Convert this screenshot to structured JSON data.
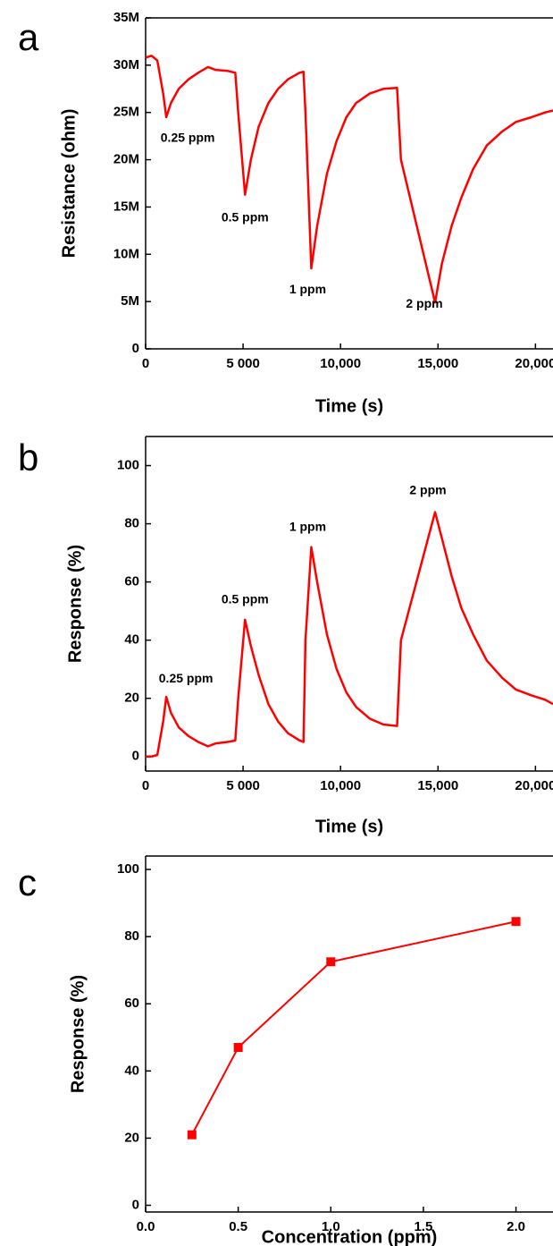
{
  "chart_data": [
    {
      "type": "line",
      "label": "a",
      "xlabel": "Time (s)",
      "ylabel": "Resistance (ohm)",
      "color": "#ff0000",
      "x": [
        0,
        300,
        600,
        900,
        1060,
        1300,
        1700,
        2200,
        2700,
        3200,
        3600,
        4200,
        4600,
        4750,
        5100,
        5400,
        5800,
        6300,
        6800,
        7300,
        7900,
        8100,
        8200,
        8500,
        8800,
        9300,
        9800,
        10300,
        10800,
        11500,
        12200,
        12900,
        13100,
        14850,
        15200,
        15700,
        16200,
        16800,
        17500,
        18300,
        19000,
        19800,
        20500,
        20900
      ],
      "values": [
        30800000,
        31000000,
        30500000,
        27000000,
        24500000,
        26000000,
        27500000,
        28500000,
        29200000,
        29800000,
        29500000,
        29400000,
        29200000,
        25000000,
        16300000,
        20000000,
        23500000,
        26000000,
        27500000,
        28500000,
        29200000,
        29300000,
        25000000,
        8500000,
        13000000,
        18500000,
        22000000,
        24500000,
        26000000,
        27000000,
        27500000,
        27600000,
        20000000,
        4900000,
        9000000,
        13000000,
        16000000,
        19000000,
        21500000,
        23000000,
        24000000,
        24500000,
        25000000,
        25200000
      ],
      "annotations": [
        "0.25 ppm",
        "0.5 ppm",
        "1 ppm",
        "2 ppm"
      ],
      "xlim": [
        0,
        20900
      ],
      "xticks": [
        0,
        {
          "value": 5000,
          "label": "5 000"
        },
        {
          "value": 10000,
          "label": "10,000"
        },
        {
          "value": 15000,
          "label": "15,000"
        },
        {
          "value": 20000,
          "label": "20,000"
        }
      ],
      "ylim": [
        0,
        35000000
      ],
      "yticks": [
        0,
        {
          "value": 5000000,
          "label": "5M"
        },
        {
          "value": 10000000,
          "label": "10M"
        },
        {
          "value": 15000000,
          "label": "15M"
        },
        {
          "value": 20000000,
          "label": "20M"
        },
        {
          "value": 25000000,
          "label": "25M"
        },
        {
          "value": 30000000,
          "label": "30M"
        },
        {
          "value": 35000000,
          "label": "35M"
        }
      ]
    },
    {
      "type": "line",
      "label": "b",
      "xlabel": "Time (s)",
      "ylabel": "Response (%)",
      "color": "#ff0000",
      "x": [
        0,
        300,
        600,
        900,
        1060,
        1300,
        1700,
        2200,
        2700,
        3200,
        3600,
        4200,
        4600,
        4750,
        5100,
        5400,
        5800,
        6300,
        6800,
        7300,
        7900,
        8100,
        8200,
        8500,
        8800,
        9300,
        9800,
        10300,
        10800,
        11500,
        12200,
        12900,
        13100,
        14850,
        15200,
        15700,
        16200,
        16800,
        17500,
        18300,
        19000,
        19800,
        20500,
        20900
      ],
      "values": [
        0,
        0,
        0.5,
        12,
        20.5,
        15,
        10,
        7,
        5,
        3.5,
        4.5,
        5,
        5.5,
        20,
        47,
        38,
        28,
        18,
        12,
        8,
        5.5,
        5,
        40,
        72,
        60,
        42,
        30,
        22,
        17,
        13,
        11,
        10.5,
        40,
        84,
        75,
        62,
        51,
        42,
        33,
        27,
        23,
        21,
        19.5,
        18
      ],
      "annotations": [
        "0.25 ppm",
        "0.5 ppm",
        "1 ppm",
        "2 ppm"
      ],
      "xlim": [
        0,
        20900
      ],
      "xticks": [
        0,
        {
          "value": 5000,
          "label": "5 000"
        },
        {
          "value": 10000,
          "label": "10,000"
        },
        {
          "value": 15000,
          "label": "15,000"
        },
        {
          "value": 20000,
          "label": "20,000"
        }
      ],
      "ylim": [
        -5,
        110
      ],
      "yticks": [
        0,
        20,
        40,
        60,
        80,
        100
      ]
    },
    {
      "type": "line-marker",
      "label": "c",
      "xlabel": "Concentration (ppm)",
      "ylabel": "Response (%)",
      "color": "#ff0000",
      "marker": "square",
      "x": [
        0.25,
        0.5,
        1,
        2
      ],
      "values": [
        21,
        47,
        72.5,
        84.5
      ],
      "xlim": [
        0,
        2.2
      ],
      "xticks": [
        {
          "value": 0,
          "label": "0.0"
        },
        0.5,
        {
          "value": 1,
          "label": "1.0"
        },
        1.5,
        {
          "value": 2,
          "label": "2.0"
        }
      ],
      "ylim": [
        -2,
        104
      ],
      "yticks": [
        0,
        20,
        40,
        60,
        80,
        100
      ]
    }
  ]
}
